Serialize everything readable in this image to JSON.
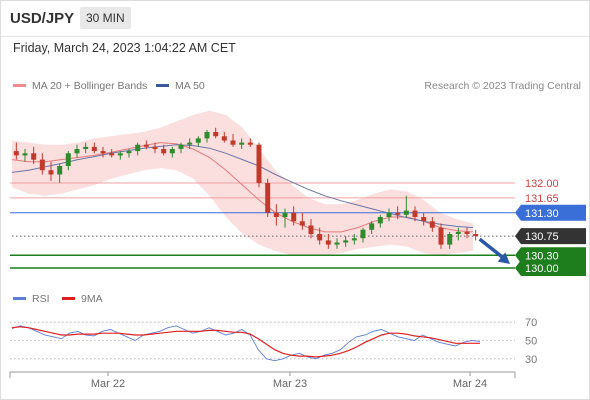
{
  "header": {
    "symbol": "USD/JPY",
    "timeframe": "30 MIN",
    "datetime": "Friday, March 24, 2023 1:04:22 AM CET",
    "copyright": "Research © 2023 Trading Central"
  },
  "legend_main": [
    {
      "label": "MA 20 + Bollinger Bands",
      "color": "#f08c8c"
    },
    {
      "label": "MA 50",
      "color": "#3a5a9a"
    }
  ],
  "legend_rsi": [
    {
      "label": "RSI",
      "color": "#5b7fd6"
    },
    {
      "label": "9MA",
      "color": "#e02020"
    }
  ],
  "colors": {
    "up_candle": "#2e8b2e",
    "down_candle": "#c0392b",
    "bollinger_fill": "#fbdede",
    "ma20": "#e57a7a",
    "ma50": "#6a78a8",
    "resistance": "#f0a0a0",
    "current_line": "#3a6fd8",
    "support": "#1e7e1e",
    "forecast_arrow": "#2a56a8"
  },
  "chart_data": [
    {
      "type": "candlestick",
      "title": "USD/JPY",
      "ylim": [
        129.6,
        134.0
      ],
      "x_ticks": [
        "Mar 22",
        "Mar 23",
        "Mar 24"
      ],
      "levels": [
        {
          "value": 132.0,
          "label": "132.00",
          "kind": "resistance"
        },
        {
          "value": 131.65,
          "label": "131.65",
          "kind": "resistance"
        },
        {
          "value": 131.3,
          "label": "131.30",
          "kind": "pivot"
        },
        {
          "value": 130.75,
          "label": "130.75",
          "kind": "last"
        },
        {
          "value": 130.3,
          "label": "130.30",
          "kind": "support"
        },
        {
          "value": 130.0,
          "label": "130.00",
          "kind": "support"
        }
      ],
      "series": [
        {
          "name": "MA 20",
          "values": [
            132.55,
            132.5,
            132.5,
            132.55,
            132.6,
            132.65,
            132.72,
            132.8,
            132.88,
            132.95,
            132.92,
            132.8,
            132.6,
            132.3,
            131.95,
            131.6,
            131.3,
            131.1,
            130.95,
            130.85,
            130.85,
            130.95,
            131.1,
            131.2,
            131.2,
            131.1,
            130.95,
            130.88,
            130.85
          ]
        },
        {
          "name": "MA 50",
          "values": [
            132.25,
            132.3,
            132.38,
            132.46,
            132.55,
            132.62,
            132.7,
            132.76,
            132.82,
            132.86,
            132.9,
            132.88,
            132.82,
            132.7,
            132.55,
            132.4,
            132.2,
            132.02,
            131.85,
            131.7,
            131.58,
            131.48,
            131.38,
            131.28,
            131.18,
            131.1,
            131.03,
            130.98,
            130.95
          ]
        }
      ],
      "bollinger": {
        "upper": [
          133.0,
          132.95,
          132.9,
          132.9,
          132.95,
          133.05,
          133.1,
          133.15,
          133.2,
          133.3,
          133.45,
          133.6,
          133.7,
          133.6,
          133.3,
          132.8,
          132.3,
          131.95,
          131.65,
          131.5,
          131.5,
          131.6,
          131.75,
          131.85,
          131.8,
          131.6,
          131.3,
          131.15,
          131.05
        ],
        "lower": [
          131.9,
          131.75,
          131.7,
          131.75,
          131.85,
          131.95,
          132.1,
          132.2,
          132.3,
          132.35,
          132.3,
          132.1,
          131.7,
          131.2,
          130.8,
          130.55,
          130.4,
          130.3,
          130.28,
          130.3,
          130.35,
          130.45,
          130.5,
          130.55,
          130.5,
          130.35,
          130.3,
          130.35,
          130.4
        ]
      },
      "candles": [
        [
          132.75,
          132.95,
          132.55,
          132.65
        ],
        [
          132.65,
          132.8,
          132.5,
          132.7
        ],
        [
          132.7,
          132.85,
          132.45,
          132.55
        ],
        [
          132.55,
          132.7,
          132.2,
          132.3
        ],
        [
          132.3,
          132.5,
          132.05,
          132.2
        ],
        [
          132.2,
          132.45,
          132.0,
          132.4
        ],
        [
          132.4,
          132.75,
          132.3,
          132.7
        ],
        [
          132.7,
          132.9,
          132.6,
          132.8
        ],
        [
          132.8,
          132.95,
          132.7,
          132.85
        ],
        [
          132.85,
          132.95,
          132.7,
          132.75
        ],
        [
          132.75,
          132.85,
          132.6,
          132.7
        ],
        [
          132.7,
          132.8,
          132.6,
          132.65
        ],
        [
          132.65,
          132.75,
          132.55,
          132.7
        ],
        [
          132.7,
          132.8,
          132.6,
          132.75
        ],
        [
          132.75,
          132.95,
          132.65,
          132.9
        ],
        [
          132.9,
          133.0,
          132.8,
          132.85
        ],
        [
          132.85,
          132.95,
          132.7,
          132.8
        ],
        [
          132.8,
          132.9,
          132.65,
          132.7
        ],
        [
          132.7,
          132.85,
          132.6,
          132.8
        ],
        [
          132.8,
          132.95,
          132.7,
          132.9
        ],
        [
          132.9,
          133.05,
          132.8,
          132.95
        ],
        [
          132.95,
          133.1,
          132.85,
          133.05
        ],
        [
          133.05,
          133.25,
          132.95,
          133.2
        ],
        [
          133.2,
          133.3,
          133.05,
          133.1
        ],
        [
          133.1,
          133.2,
          132.95,
          133.0
        ],
        [
          133.0,
          133.15,
          132.85,
          132.9
        ],
        [
          132.9,
          133.05,
          132.8,
          132.95
        ],
        [
          132.95,
          133.05,
          132.85,
          132.9
        ],
        [
          132.9,
          132.95,
          131.9,
          132.0
        ],
        [
          132.0,
          132.1,
          131.2,
          131.3
        ],
        [
          131.3,
          131.5,
          131.0,
          131.2
        ],
        [
          131.2,
          131.4,
          130.95,
          131.3
        ],
        [
          131.3,
          131.45,
          131.0,
          131.1
        ],
        [
          131.1,
          131.3,
          130.9,
          131.0
        ],
        [
          131.0,
          131.15,
          130.7,
          130.8
        ],
        [
          130.8,
          130.95,
          130.55,
          130.65
        ],
        [
          130.65,
          130.8,
          130.45,
          130.55
        ],
        [
          130.55,
          130.7,
          130.45,
          130.6
        ],
        [
          130.6,
          130.75,
          130.5,
          130.65
        ],
        [
          130.65,
          130.8,
          130.55,
          130.7
        ],
        [
          130.7,
          130.95,
          130.6,
          130.9
        ],
        [
          130.9,
          131.1,
          130.8,
          131.05
        ],
        [
          131.05,
          131.25,
          130.95,
          131.2
        ],
        [
          131.2,
          131.4,
          131.1,
          131.3
        ],
        [
          131.3,
          131.45,
          131.15,
          131.25
        ],
        [
          131.25,
          131.7,
          131.2,
          131.35
        ],
        [
          131.35,
          131.45,
          131.1,
          131.2
        ],
        [
          131.2,
          131.3,
          131.0,
          131.1
        ],
        [
          131.1,
          131.2,
          130.85,
          130.95
        ],
        [
          130.95,
          131.05,
          130.45,
          130.55
        ],
        [
          130.55,
          130.85,
          130.45,
          130.8
        ],
        [
          130.8,
          130.95,
          130.65,
          130.85
        ],
        [
          130.85,
          130.95,
          130.7,
          130.8
        ],
        [
          130.8,
          130.9,
          130.65,
          130.75
        ]
      ]
    },
    {
      "type": "line",
      "title": "RSI",
      "ylim": [
        20,
        80
      ],
      "y_ticks": [
        70,
        50,
        30
      ],
      "series": [
        {
          "name": "RSI",
          "values": [
            63,
            66,
            64,
            60,
            56,
            54,
            52,
            58,
            60,
            56,
            55,
            60,
            62,
            58,
            54,
            50,
            56,
            58,
            60,
            64,
            66,
            62,
            58,
            60,
            64,
            60,
            56,
            58,
            62,
            56,
            40,
            30,
            28,
            30,
            34,
            36,
            32,
            30,
            34,
            36,
            40,
            48,
            54,
            56,
            60,
            62,
            58,
            54,
            52,
            50,
            56,
            52,
            48,
            46,
            44,
            48,
            50,
            49
          ]
        },
        {
          "name": "9MA",
          "values": [
            64,
            65,
            64,
            62,
            60,
            58,
            56,
            56,
            57,
            57,
            57,
            58,
            58,
            58,
            57,
            56,
            56,
            57,
            58,
            59,
            60,
            60,
            60,
            60,
            61,
            61,
            60,
            59,
            59,
            57,
            52,
            46,
            40,
            36,
            34,
            33,
            33,
            32,
            33,
            34,
            36,
            39,
            43,
            48,
            52,
            56,
            58,
            58,
            57,
            55,
            54,
            53,
            51,
            49,
            47,
            47,
            47,
            47
          ]
        }
      ]
    }
  ]
}
